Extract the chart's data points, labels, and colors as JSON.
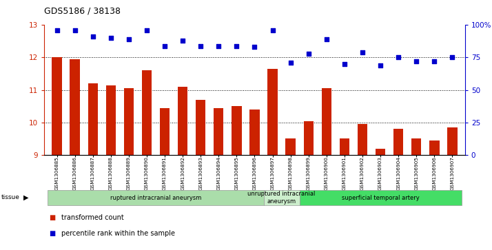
{
  "title": "GDS5186 / 38138",
  "samples": [
    "GSM1306885",
    "GSM1306886",
    "GSM1306887",
    "GSM1306888",
    "GSM1306889",
    "GSM1306890",
    "GSM1306891",
    "GSM1306892",
    "GSM1306893",
    "GSM1306894",
    "GSM1306895",
    "GSM1306896",
    "GSM1306897",
    "GSM1306898",
    "GSM1306899",
    "GSM1306900",
    "GSM1306901",
    "GSM1306902",
    "GSM1306903",
    "GSM1306904",
    "GSM1306905",
    "GSM1306906",
    "GSM1306907"
  ],
  "bar_values": [
    12.0,
    11.95,
    11.2,
    11.15,
    11.05,
    11.6,
    10.45,
    11.1,
    10.7,
    10.45,
    10.5,
    10.4,
    11.65,
    9.5,
    10.05,
    11.05,
    9.5,
    9.95,
    9.2,
    9.8,
    9.5,
    9.45,
    9.85
  ],
  "percentile_values": [
    96,
    96,
    91,
    90,
    89,
    96,
    84,
    88,
    84,
    84,
    84,
    83,
    96,
    71,
    78,
    89,
    70,
    79,
    69,
    75,
    72,
    72,
    75
  ],
  "bar_color": "#cc2200",
  "dot_color": "#0000cc",
  "ylim_left": [
    9,
    13
  ],
  "ylim_right": [
    0,
    100
  ],
  "yticks_left": [
    9,
    10,
    11,
    12,
    13
  ],
  "yticks_right": [
    0,
    25,
    50,
    75,
    100
  ],
  "ytick_labels_right": [
    "0",
    "25",
    "50",
    "75",
    "100%"
  ],
  "group_labels": [
    "ruptured intracranial aneurysm",
    "unruptured intracranial\naneurysm",
    "superficial temporal artery"
  ],
  "group_starts": [
    0,
    12,
    14
  ],
  "group_ends": [
    12,
    14,
    23
  ],
  "group_colors": [
    "#aaddaa",
    "#cceecc",
    "#44dd66"
  ],
  "group_header": "tissue",
  "legend_bar_label": "transformed count",
  "legend_dot_label": "percentile rank within the sample",
  "dotted_line_color": "#000000",
  "bar_bottom": 9,
  "xtick_bg_color": "#cccccc"
}
